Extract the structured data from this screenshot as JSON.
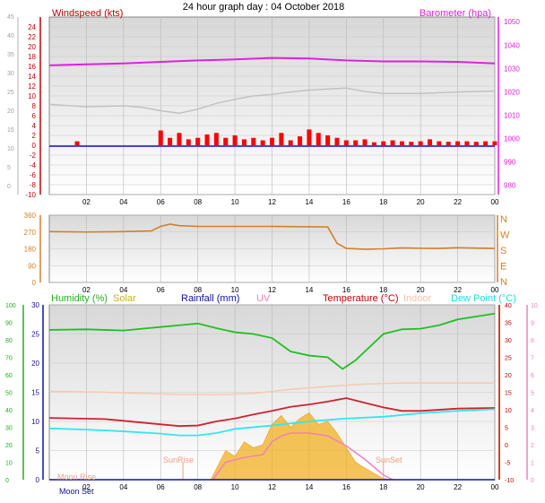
{
  "title": "24 hour graph day : 04 October 2018",
  "x_ticks": [
    "02",
    "04",
    "06",
    "08",
    "10",
    "12",
    "14",
    "16",
    "18",
    "20",
    "22",
    "00"
  ],
  "colors": {
    "windspeed": "#ff0000",
    "gust": "#c0c0c0",
    "barometer": "#e020e0",
    "direction": "#d0802a",
    "humidity": "#20c020",
    "solar": "#f0b020",
    "rainfall": "#1010a0",
    "uv": "#f080c0",
    "temperature": "#d02030",
    "indoor": "#f8c8b0",
    "dewpoint": "#30e8f0",
    "axis_left_top": "#c00000",
    "axis_left_bottom": "#20b020"
  },
  "chart_data": [
    {
      "type": "line",
      "name": "wind-barometer",
      "left_label": "Windspeed (kts)",
      "right_label": "Barometer (hpa)",
      "ylim": [
        -10,
        26
      ],
      "yticks": [
        -10,
        -8,
        -6,
        -4,
        -2,
        0,
        2,
        4,
        6,
        8,
        10,
        12,
        14,
        16,
        18,
        20,
        22,
        24
      ],
      "y2lim": [
        976,
        1052
      ],
      "y2ticks": [
        980,
        990,
        1000,
        1010,
        1020,
        1030,
        1040,
        1050
      ],
      "outer_ticks": [
        "0",
        "5",
        "10",
        "15",
        "20",
        "25",
        "30",
        "35",
        "40",
        "45"
      ],
      "series": [
        {
          "key": "barometer",
          "points": [
            [
              0,
              16.2
            ],
            [
              2,
              16.4
            ],
            [
              4,
              16.6
            ],
            [
              6,
              16.9
            ],
            [
              8,
              17.2
            ],
            [
              10,
              17.4
            ],
            [
              12,
              17.7
            ],
            [
              14,
              17.6
            ],
            [
              16,
              17.2
            ],
            [
              18,
              17.0
            ],
            [
              20,
              17.0
            ],
            [
              22,
              16.9
            ],
            [
              24,
              16.6
            ]
          ]
        },
        {
          "key": "gust",
          "points": [
            [
              0,
              8.3
            ],
            [
              2,
              7.8
            ],
            [
              4,
              8.0
            ],
            [
              5,
              7.7
            ],
            [
              6,
              7.0
            ],
            [
              7,
              6.5
            ],
            [
              8,
              7.3
            ],
            [
              9,
              8.5
            ],
            [
              10,
              9.3
            ],
            [
              11,
              10.0
            ],
            [
              12,
              10.3
            ],
            [
              13,
              10.8
            ],
            [
              14,
              11.2
            ],
            [
              15,
              11.4
            ],
            [
              16,
              11.6
            ],
            [
              17,
              10.9
            ],
            [
              18,
              10.5
            ],
            [
              20,
              10.5
            ],
            [
              22,
              10.8
            ],
            [
              24,
              11.0
            ]
          ]
        }
      ],
      "wind_bars": [
        [
          1.5,
          0.8
        ],
        [
          6.0,
          3.0
        ],
        [
          6.5,
          1.5
        ],
        [
          7.0,
          2.5
        ],
        [
          7.5,
          1.2
        ],
        [
          8.0,
          1.5
        ],
        [
          8.5,
          2.2
        ],
        [
          9.0,
          2.5
        ],
        [
          9.5,
          1.5
        ],
        [
          10.0,
          2.0
        ],
        [
          10.5,
          1.2
        ],
        [
          11.0,
          1.5
        ],
        [
          11.5,
          1.0
        ],
        [
          12.0,
          1.5
        ],
        [
          12.5,
          2.5
        ],
        [
          13.0,
          1.0
        ],
        [
          13.5,
          1.8
        ],
        [
          14.0,
          3.2
        ],
        [
          14.5,
          2.5
        ],
        [
          15.0,
          2.0
        ],
        [
          15.5,
          1.5
        ],
        [
          16.0,
          1.0
        ],
        [
          16.5,
          1.0
        ],
        [
          17.0,
          1.2
        ],
        [
          17.5,
          0.6
        ],
        [
          18.0,
          0.8
        ],
        [
          18.5,
          1.0
        ],
        [
          19.0,
          0.8
        ],
        [
          19.5,
          0.7
        ],
        [
          20.0,
          0.8
        ],
        [
          20.5,
          1.2
        ],
        [
          21.0,
          0.8
        ],
        [
          21.5,
          0.7
        ],
        [
          22.0,
          0.8
        ],
        [
          22.5,
          0.8
        ],
        [
          23.0,
          0.7
        ],
        [
          23.5,
          0.8
        ],
        [
          24.0,
          0.8
        ]
      ]
    },
    {
      "type": "line",
      "name": "wind-direction",
      "ylim": [
        0,
        360
      ],
      "yticks": [
        0,
        90,
        180,
        270,
        360
      ],
      "compass": [
        "N",
        "W",
        "S",
        "E",
        "N"
      ],
      "series": [
        {
          "key": "direction",
          "points": [
            [
              0,
              272
            ],
            [
              2,
              270
            ],
            [
              4,
              272
            ],
            [
              5.5,
              276
            ],
            [
              6,
              300
            ],
            [
              6.5,
              312
            ],
            [
              7,
              304
            ],
            [
              8,
              300
            ],
            [
              10,
              300
            ],
            [
              12,
              300
            ],
            [
              14,
              298
            ],
            [
              15,
              297
            ],
            [
              15.5,
              210
            ],
            [
              16,
              182
            ],
            [
              17,
              178
            ],
            [
              18,
              180
            ],
            [
              19,
              185
            ],
            [
              20,
              183
            ],
            [
              21,
              182
            ],
            [
              22,
              186
            ],
            [
              23,
              184
            ],
            [
              24,
              182
            ]
          ]
        }
      ]
    },
    {
      "type": "line",
      "name": "humidity-temperature",
      "labels": {
        "humidity": "Humidity (%)",
        "solar": "Solar",
        "rainfall": "Rainfall (mm)",
        "uv": "UV",
        "temperature": "Temperature (°C)",
        "indoor": "Indoor",
        "dewpoint": "Dew Point (°C)"
      },
      "annotations": {
        "sunrise": "SunRise",
        "sunset": "SunSet",
        "moonrise": "Moon Rise",
        "moonset": "Moon Set"
      },
      "events_hours": {
        "sunrise": 7.2,
        "sunset": 18.0,
        "moonrise": 2.2,
        "moonset": 2.2
      },
      "ylim": [
        0,
        30
      ],
      "yticks": [
        0,
        5,
        10,
        15,
        20,
        25,
        30
      ],
      "humidity_ticks": [
        0,
        10,
        20,
        30,
        40,
        50,
        60,
        70,
        80,
        90,
        100
      ],
      "temp_ticks": [
        -10,
        -5,
        0,
        5,
        10,
        15,
        20,
        25,
        30,
        35,
        40
      ],
      "uv_ticks": [
        0,
        1,
        2,
        3,
        4,
        5,
        6,
        7,
        8,
        9,
        10
      ],
      "series": [
        {
          "key": "humidity",
          "points": [
            [
              0,
              25.7
            ],
            [
              2,
              25.8
            ],
            [
              4,
              25.6
            ],
            [
              5,
              25.9
            ],
            [
              6,
              26.2
            ],
            [
              7,
              26.5
            ],
            [
              8,
              26.8
            ],
            [
              9,
              26.0
            ],
            [
              10,
              25.3
            ],
            [
              11,
              25.0
            ],
            [
              12,
              24.3
            ],
            [
              13,
              22.0
            ],
            [
              14,
              21.3
            ],
            [
              15,
              21.0
            ],
            [
              15.8,
              19.0
            ],
            [
              16.5,
              20.5
            ],
            [
              17,
              22.0
            ],
            [
              18,
              25.0
            ],
            [
              19,
              25.8
            ],
            [
              20,
              25.9
            ],
            [
              21,
              26.5
            ],
            [
              22,
              27.5
            ],
            [
              23,
              28.0
            ],
            [
              24,
              28.5
            ]
          ]
        },
        {
          "key": "indoor",
          "points": [
            [
              0,
              15.2
            ],
            [
              3,
              15.0
            ],
            [
              6,
              14.7
            ],
            [
              9,
              14.6
            ],
            [
              11,
              14.8
            ],
            [
              13,
              15.5
            ],
            [
              15,
              16.0
            ],
            [
              17,
              16.4
            ],
            [
              19,
              16.6
            ],
            [
              21,
              16.6
            ],
            [
              24,
              16.6
            ]
          ]
        },
        {
          "key": "temperature",
          "points": [
            [
              0,
              10.6
            ],
            [
              3,
              10.4
            ],
            [
              5,
              9.8
            ],
            [
              7,
              9.2
            ],
            [
              8,
              9.3
            ],
            [
              9,
              10.0
            ],
            [
              10,
              10.5
            ],
            [
              11,
              11.2
            ],
            [
              12,
              11.8
            ],
            [
              13,
              12.5
            ],
            [
              14,
              12.9
            ],
            [
              15,
              13.4
            ],
            [
              16,
              14.0
            ],
            [
              17,
              13.2
            ],
            [
              18,
              12.4
            ],
            [
              19,
              11.8
            ],
            [
              20,
              11.8
            ],
            [
              22,
              12.2
            ],
            [
              24,
              12.3
            ]
          ]
        },
        {
          "key": "dewpoint",
          "points": [
            [
              0,
              8.8
            ],
            [
              2,
              8.6
            ],
            [
              4,
              8.3
            ],
            [
              6,
              7.9
            ],
            [
              7,
              7.6
            ],
            [
              8,
              7.6
            ],
            [
              9,
              8.0
            ],
            [
              10,
              8.7
            ],
            [
              12,
              9.3
            ],
            [
              14,
              10.0
            ],
            [
              16,
              10.5
            ],
            [
              18,
              10.8
            ],
            [
              20,
              11.4
            ],
            [
              22,
              11.8
            ],
            [
              24,
              12.1
            ]
          ]
        },
        {
          "key": "uv",
          "points": [
            [
              8.8,
              0
            ],
            [
              9.5,
              3.0
            ],
            [
              10.5,
              3.8
            ],
            [
              11.5,
              4.3
            ],
            [
              12,
              6.5
            ],
            [
              12.5,
              7.5
            ],
            [
              13,
              8.0
            ],
            [
              14,
              8.0
            ],
            [
              15,
              7.5
            ],
            [
              16,
              5.8
            ],
            [
              17,
              3.5
            ],
            [
              18,
              0.8
            ],
            [
              18.5,
              0
            ]
          ]
        },
        {
          "key": "rainfall",
          "points": [
            [
              0,
              0
            ],
            [
              24,
              0
            ]
          ]
        }
      ],
      "solar_area": [
        [
          8.7,
          0
        ],
        [
          9.5,
          5.0
        ],
        [
          10,
          4.0
        ],
        [
          10.5,
          6.5
        ],
        [
          11,
          5.5
        ],
        [
          11.5,
          6.0
        ],
        [
          12,
          9.5
        ],
        [
          12.5,
          11.0
        ],
        [
          13,
          9.0
        ],
        [
          13.5,
          10.5
        ],
        [
          14,
          11.5
        ],
        [
          14.5,
          9.5
        ],
        [
          15,
          10.0
        ],
        [
          15.5,
          8.0
        ],
        [
          16,
          5.5
        ],
        [
          16.5,
          3.0
        ],
        [
          17,
          2.0
        ],
        [
          18,
          0.2
        ],
        [
          18.5,
          0
        ]
      ]
    }
  ]
}
